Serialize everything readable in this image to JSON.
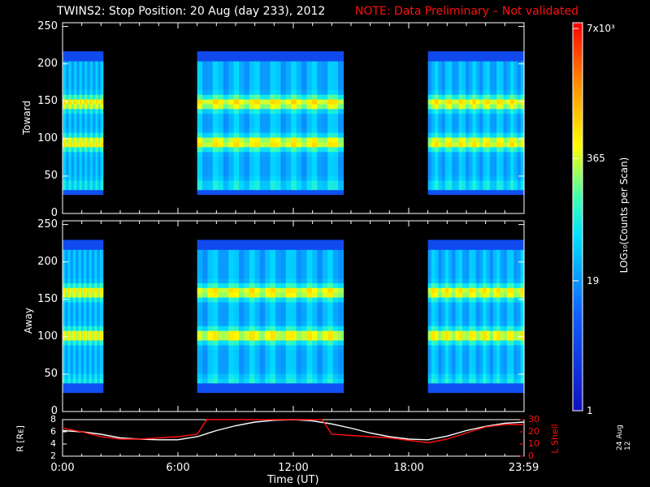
{
  "header": {
    "title": "TWINS2: Stop Position: 20 Aug (day 233), 2012",
    "note": "NOTE: Data Preliminary – Not validated"
  },
  "colorbar": {
    "label": "LOG₁₀(Counts per Scan)",
    "tick_labels": [
      "7x10³",
      "365",
      "19",
      "1"
    ]
  },
  "xaxis": {
    "title": "Time (UT)",
    "tick_labels": [
      "0:00",
      "6:00",
      "12:00",
      "18:00",
      "23:59"
    ]
  },
  "date_stamp": "24 Aug 12",
  "colors": {
    "background": "#000000",
    "axes": "#ffffff",
    "note": "#ff1010",
    "lshell": "#ff1010",
    "r_line": "#ffffff"
  },
  "chart_data": [
    {
      "type": "heatmap",
      "name": "Toward",
      "ylabel": "Toward",
      "ylim": [
        0,
        255
      ],
      "yticks": [
        0,
        50,
        100,
        150,
        200,
        250
      ],
      "xlim_hours": [
        0,
        24
      ],
      "data_gaps_hours": [
        [
          2.1,
          7.0
        ],
        [
          14.6,
          19.0
        ]
      ],
      "data_intervals_hours": [
        [
          0,
          2.1
        ],
        [
          7.0,
          14.6
        ],
        [
          19.0,
          24
        ]
      ],
      "energy_band_upper": 205,
      "energy_band_lower": 32,
      "bright_bands": [
        95,
        148
      ]
    },
    {
      "type": "heatmap",
      "name": "Away",
      "ylabel": "Away",
      "ylim": [
        0,
        255
      ],
      "yticks": [
        0,
        50,
        100,
        150,
        200,
        250
      ],
      "xlim_hours": [
        0,
        24
      ],
      "data_gaps_hours": [
        [
          2.1,
          7.0
        ],
        [
          14.6,
          19.0
        ]
      ],
      "data_intervals_hours": [
        [
          0,
          2.1
        ],
        [
          7.0,
          14.6
        ],
        [
          19.0,
          24
        ]
      ],
      "energy_band_upper": 218,
      "energy_band_lower": 36,
      "bright_bands": [
        102,
        160
      ]
    },
    {
      "type": "line",
      "ylabel_left": "R [Rᴇ]",
      "ylabel_right": "L Shell",
      "left_ylim": [
        2,
        8
      ],
      "left_yticks": [
        2,
        4,
        6,
        8
      ],
      "right_ylim": [
        0,
        30
      ],
      "right_yticks": [
        0,
        10,
        20,
        30
      ],
      "series": [
        {
          "axis": "left",
          "x": [
            0,
            1,
            2,
            3,
            4,
            5,
            6,
            7,
            8,
            9,
            10,
            11,
            12,
            13,
            14,
            15,
            16,
            17,
            18,
            19,
            20,
            21,
            22,
            23,
            24
          ],
          "values": [
            6.2,
            6.0,
            5.6,
            5.0,
            4.8,
            4.7,
            4.7,
            5.2,
            6.2,
            7.0,
            7.6,
            7.9,
            8.0,
            7.8,
            7.3,
            6.6,
            5.8,
            5.2,
            4.8,
            4.7,
            5.3,
            6.2,
            6.9,
            7.4,
            7.6
          ]
        },
        {
          "axis": "right",
          "x": [
            0,
            1,
            2,
            3,
            4,
            5,
            6,
            7,
            7.5,
            8,
            13.5,
            14,
            15,
            16,
            17,
            18,
            19,
            20,
            21,
            22,
            23,
            24
          ],
          "values": [
            23,
            20,
            16,
            14,
            14,
            15,
            16,
            18,
            30,
            30,
            30,
            18,
            17,
            16,
            15,
            13,
            11,
            14,
            19,
            24,
            26,
            26
          ]
        }
      ]
    }
  ]
}
